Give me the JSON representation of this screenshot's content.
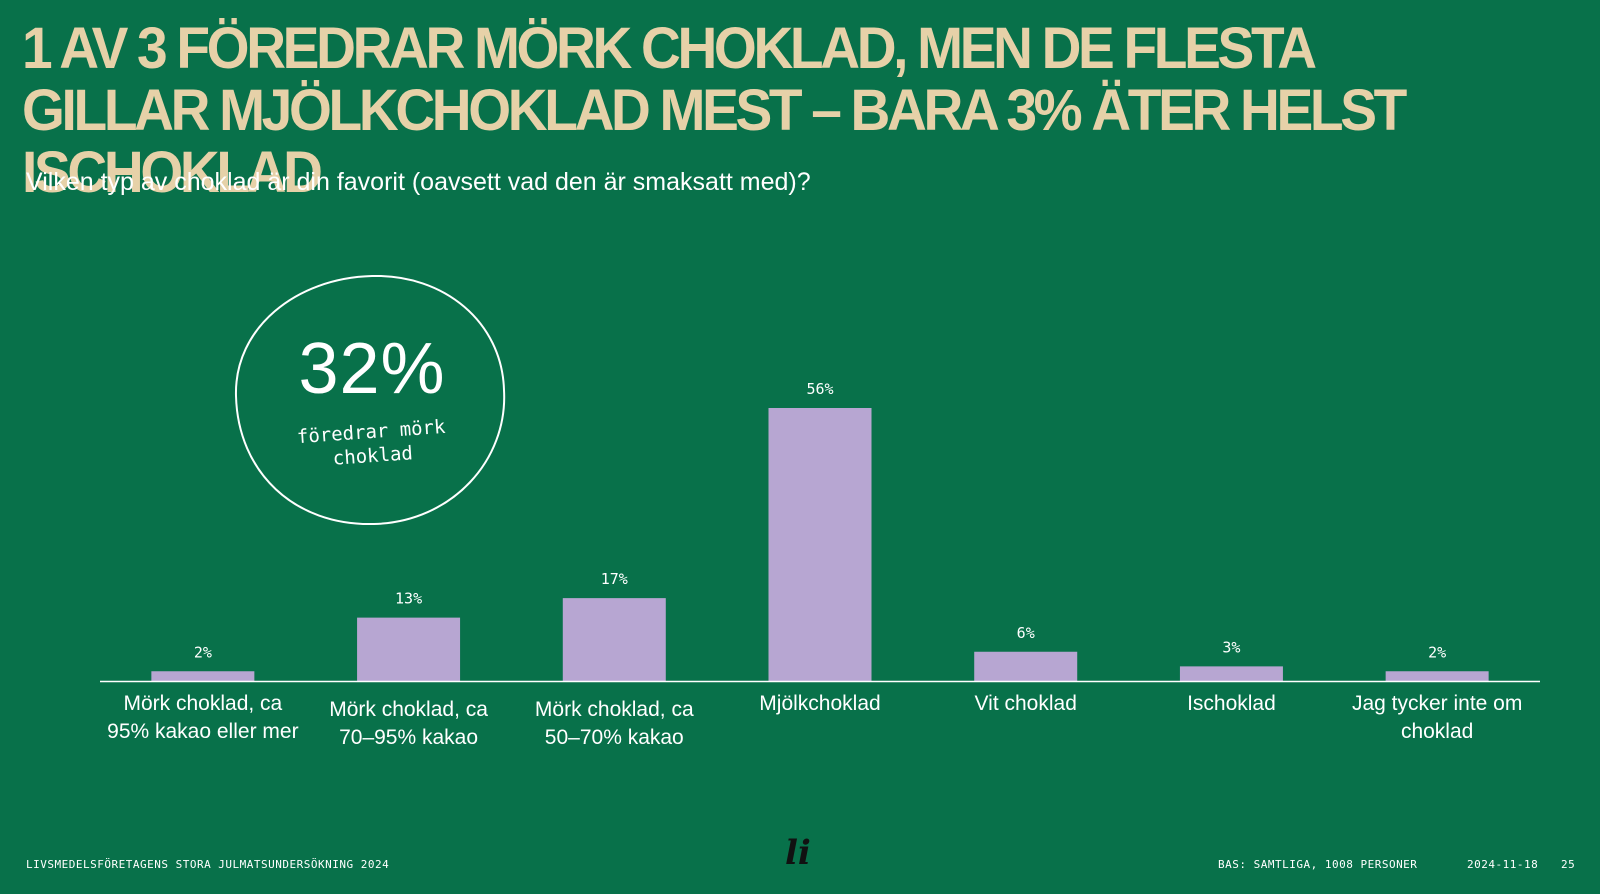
{
  "title": "1 AV 3 FÖREDRAR MÖRK CHOKLAD, MEN DE FLESTA GILLAR MJÖLKCHOKLAD MEST – BARA 3% ÄTER HELST ISCHOKLAD",
  "subtitle": "Vilken typ av choklad är din favorit (oavsett vad den är smaksatt med)?",
  "callout": {
    "value": "32%",
    "text": "föredrar mörk choklad"
  },
  "chart_data": {
    "type": "bar",
    "categories": [
      "Mörk choklad, ca 95% kakao eller mer",
      "Mörk choklad, ca 70–95% kakao",
      "Mörk choklad, ca 50–70% kakao",
      "Mjölkchoklad",
      "Vit choklad",
      "Ischoklad",
      "Jag tycker inte om choklad"
    ],
    "values": [
      2,
      13,
      17,
      56,
      6,
      3,
      2
    ],
    "data_labels": [
      "2%",
      "13%",
      "17%",
      "56%",
      "6%",
      "3%",
      "2%"
    ],
    "unit": "%",
    "ylim": [
      0,
      56
    ],
    "grid": false,
    "legend": "none"
  },
  "colors": {
    "background": "#08714a",
    "title": "#e6d1a8",
    "bar": "#b7a6d2",
    "text": "#ffffff",
    "axis": "#ffffff"
  },
  "footer": {
    "left": "LIVSMEDELSFÖRETAGENS STORA JULMATSUNDERSÖKNING 2024",
    "base": "BAS: SAMTLIGA, 1008 PERSONER",
    "date": "2024-11-18",
    "page": "25"
  },
  "logo": "li"
}
